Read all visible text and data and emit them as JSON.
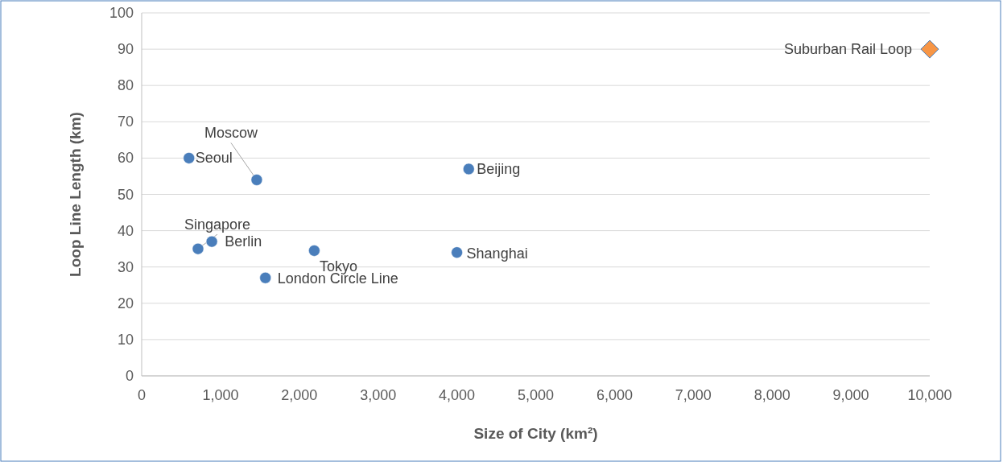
{
  "chart_data": {
    "type": "scatter",
    "xlabel": "Size of City (km²)",
    "ylabel": "Loop Line Length (km)",
    "series": [
      {
        "color": "#4a7ebb",
        "marker": "circle",
        "x": [
          600,
          1460,
          4150,
          715,
          890,
          2190,
          1570,
          4000
        ],
        "values": [
          60,
          54,
          57,
          35,
          37,
          34.5,
          27,
          34
        ]
      },
      {
        "color": "#f79646",
        "marker": "diamond",
        "x": [
          10000
        ],
        "values": [
          90
        ]
      }
    ],
    "annotations": [
      {
        "text": "Seoul",
        "x": 600,
        "y": 60
      },
      {
        "text": "Moscow",
        "x": 1460,
        "y": 54
      },
      {
        "text": "Beijing",
        "x": 4150,
        "y": 57
      },
      {
        "text": "Singapore",
        "x": 715,
        "y": 35
      },
      {
        "text": "Berlin",
        "x": 890,
        "y": 37
      },
      {
        "text": "Tokyo",
        "x": 2190,
        "y": 34.5
      },
      {
        "text": "London Circle Line",
        "x": 1570,
        "y": 27
      },
      {
        "text": "Shanghai",
        "x": 4000,
        "y": 34
      },
      {
        "text": "Suburban Rail Loop",
        "x": 10000,
        "y": 90
      }
    ],
    "xlim": [
      0,
      10000
    ],
    "xticks": [
      0,
      {
        "value": 1000,
        "label": "1,000"
      },
      {
        "value": 2000,
        "label": "2,000"
      },
      {
        "value": 3000,
        "label": "3,000"
      },
      {
        "value": 4000,
        "label": "4,000"
      },
      {
        "value": 5000,
        "label": "5,000"
      },
      {
        "value": 6000,
        "label": "6,000"
      },
      {
        "value": 7000,
        "label": "7,000"
      },
      {
        "value": 8000,
        "label": "8,000"
      },
      {
        "value": 9000,
        "label": "9,000"
      },
      {
        "value": 10000,
        "label": "10,000"
      }
    ],
    "ylim": [
      0,
      100
    ],
    "yticks": [
      0,
      10,
      20,
      30,
      40,
      50,
      60,
      70,
      80,
      90,
      100
    ],
    "grid": "y"
  }
}
